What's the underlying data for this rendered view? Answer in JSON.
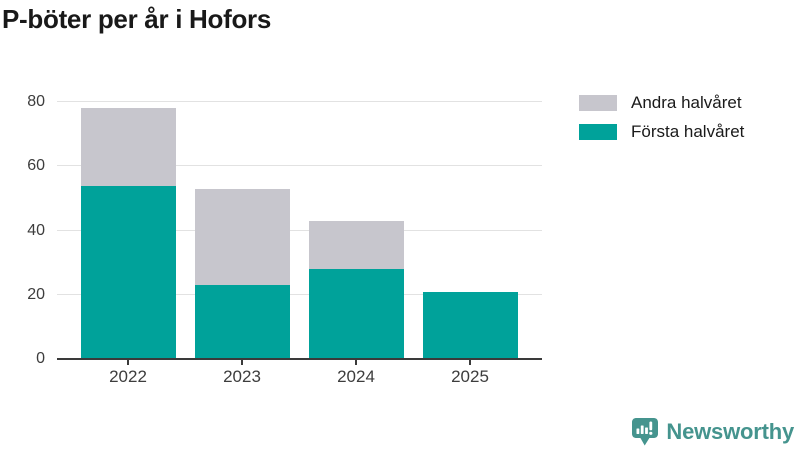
{
  "title": "P-böter per år i Hofors",
  "legend": {
    "items": [
      {
        "label": "Andra halvåret",
        "color": "#c7c6cd"
      },
      {
        "label": "Första halvåret",
        "color": "#00a29a"
      }
    ]
  },
  "chart_data": {
    "type": "bar",
    "stacked": true,
    "title": "P-böter per år i Hofors",
    "categories": [
      "2022",
      "2023",
      "2024",
      "2025"
    ],
    "series": [
      {
        "name": "Första halvåret",
        "color": "#00a29a",
        "values": [
          54,
          23,
          28,
          21
        ]
      },
      {
        "name": "Andra halvåret",
        "color": "#c7c6cd",
        "values": [
          24,
          30,
          15,
          0
        ]
      }
    ],
    "ylim": [
      0,
      80
    ],
    "yticks": [
      0,
      20,
      40,
      60,
      80
    ],
    "grid": true,
    "legend_position": "top-right",
    "xlabel": "",
    "ylabel": ""
  },
  "branding": {
    "name": "Newsworthy",
    "color": "#45948e"
  }
}
